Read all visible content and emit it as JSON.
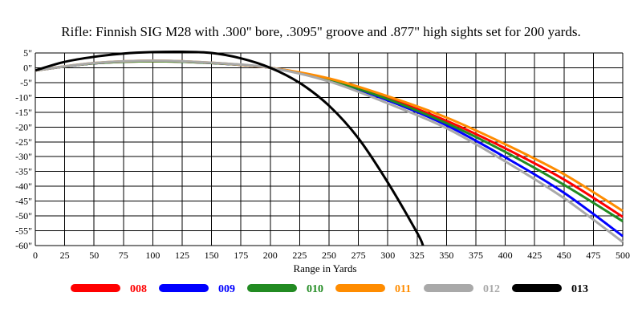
{
  "chart_data": {
    "type": "line",
    "title": "Rifle:  Finnish SIG M28 with .300\" bore, .3095\" groove and .877\" high sights set for 200 yards.",
    "xlabel": "Range in Yards",
    "ylabel": "",
    "xlim": [
      0,
      500
    ],
    "ylim": [
      -60,
      5
    ],
    "grid": true,
    "legend_position": "bottom",
    "x_ticks": [
      0,
      25,
      50,
      75,
      100,
      125,
      150,
      175,
      200,
      225,
      250,
      275,
      300,
      325,
      350,
      375,
      400,
      425,
      450,
      475,
      500
    ],
    "y_ticks": [
      {
        "value": 5,
        "label": "5\""
      },
      {
        "value": 0,
        "label": "0\""
      },
      {
        "value": -5,
        "label": "-5\""
      },
      {
        "value": -10,
        "label": "-10\""
      },
      {
        "value": -15,
        "label": "-15\""
      },
      {
        "value": -20,
        "label": "-20\""
      },
      {
        "value": -25,
        "label": "-25\""
      },
      {
        "value": -30,
        "label": "-30\""
      },
      {
        "value": -35,
        "label": "-35\""
      },
      {
        "value": -40,
        "label": "-40\""
      },
      {
        "value": -45,
        "label": "-45\""
      },
      {
        "value": -50,
        "label": "-50\""
      },
      {
        "value": -55,
        "label": "-55\""
      },
      {
        "value": -60,
        "label": "-60\""
      }
    ],
    "series": [
      {
        "name": "008",
        "color": "#ff0000",
        "x": [
          0,
          50,
          100,
          150,
          200,
          250,
          300,
          350,
          400,
          450,
          500
        ],
        "y": [
          -0.877,
          1.5,
          2.2,
          1.6,
          0,
          -3.9,
          -10.3,
          -17.9,
          -27.2,
          -37.7,
          -50.3
        ]
      },
      {
        "name": "009",
        "color": "#0000ff",
        "x": [
          0,
          50,
          100,
          150,
          200,
          250,
          300,
          350,
          400,
          450,
          500
        ],
        "y": [
          -0.877,
          1.5,
          2.3,
          1.6,
          0,
          -4.3,
          -11.0,
          -19.4,
          -30.2,
          -42.2,
          -56.8
        ]
      },
      {
        "name": "010",
        "color": "#228b22",
        "x": [
          0,
          50,
          100,
          150,
          200,
          250,
          300,
          350,
          400,
          450,
          500
        ],
        "y": [
          -0.877,
          1.5,
          2.2,
          1.6,
          0,
          -4.1,
          -10.6,
          -18.7,
          -28.4,
          -39.5,
          -51.8
        ]
      },
      {
        "name": "011",
        "color": "#ff8c00",
        "x": [
          0,
          50,
          100,
          150,
          200,
          250,
          300,
          350,
          400,
          450,
          500
        ],
        "y": [
          -0.877,
          1.6,
          2.4,
          1.7,
          0,
          -3.6,
          -9.6,
          -16.8,
          -25.8,
          -35.9,
          -48.3
        ]
      },
      {
        "name": "012",
        "color": "#a9a9a9",
        "x": [
          0,
          50,
          100,
          150,
          200,
          250,
          300,
          350,
          400,
          450,
          500
        ],
        "y": [
          -0.877,
          1.6,
          2.4,
          1.7,
          0,
          -4.6,
          -12.0,
          -20.4,
          -31.6,
          -44.0,
          -58.8
        ]
      },
      {
        "name": "013",
        "color": "#000000",
        "x": [
          0,
          25,
          50,
          75,
          100,
          125,
          150,
          175,
          200,
          225,
          250,
          275,
          300,
          325,
          330
        ],
        "y": [
          -0.877,
          2.0,
          3.7,
          4.8,
          5.3,
          5.4,
          5.0,
          3.2,
          0,
          -5.1,
          -12.8,
          -23.8,
          -38.7,
          -55.7,
          -60
        ]
      }
    ]
  }
}
